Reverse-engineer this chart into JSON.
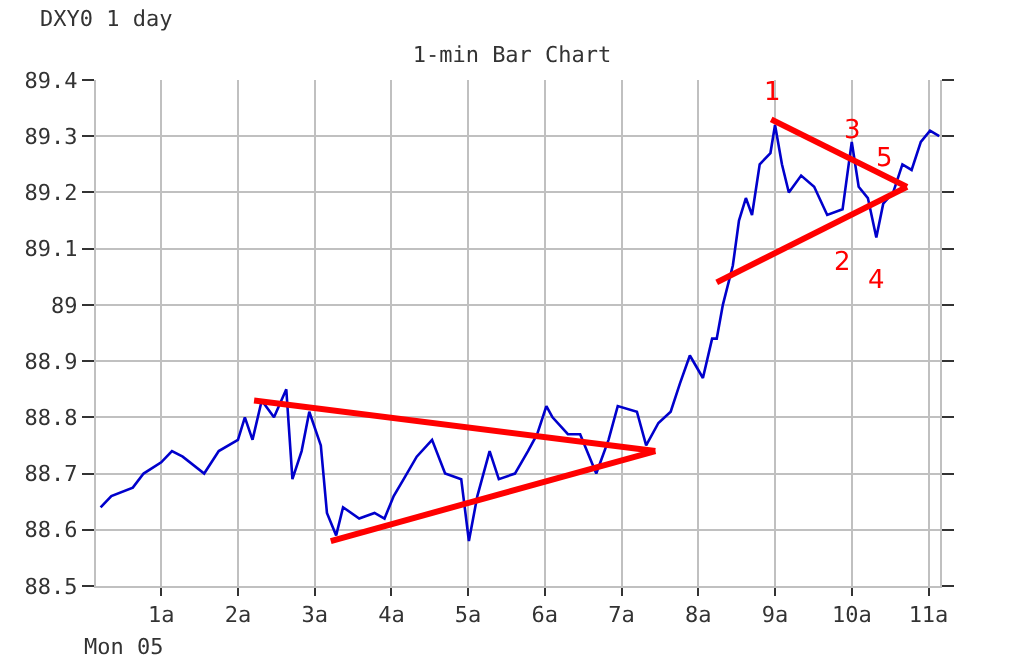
{
  "chart_data": {
    "type": "line",
    "title": "1-min Bar Chart",
    "subtitle": "DXY0 1 day",
    "x": [
      0.21,
      0.35,
      0.63,
      0.77,
      1.0,
      1.14,
      1.28,
      1.56,
      1.75,
      2.0,
      2.09,
      2.19,
      2.31,
      2.47,
      2.63,
      2.71,
      2.83,
      2.93,
      3.08,
      3.16,
      3.28,
      3.37,
      3.58,
      3.78,
      3.91,
      4.03,
      4.16,
      4.33,
      4.53,
      4.7,
      4.91,
      5.01,
      5.12,
      5.28,
      5.4,
      5.61,
      5.78,
      5.9,
      6.02,
      6.1,
      6.3,
      6.46,
      6.67,
      6.83,
      6.95,
      7.2,
      7.32,
      7.48,
      7.64,
      7.76,
      7.89,
      8.06,
      8.18,
      8.24,
      8.32,
      8.45,
      8.53,
      8.62,
      8.7,
      8.8,
      8.94,
      9.0,
      9.09,
      9.18,
      9.34,
      9.51,
      9.68,
      9.88,
      10.0,
      10.09,
      10.21,
      10.32,
      10.41,
      10.54,
      10.66,
      10.78,
      10.9,
      11.02,
      11.14
    ],
    "series": [
      {
        "color": "#0000cc",
        "values": [
          88.64,
          88.66,
          88.675,
          88.7,
          88.72,
          88.74,
          88.73,
          88.7,
          88.74,
          88.76,
          88.8,
          88.76,
          88.83,
          88.8,
          88.85,
          88.69,
          88.74,
          88.81,
          88.75,
          88.63,
          88.59,
          88.64,
          88.62,
          88.63,
          88.62,
          88.66,
          88.69,
          88.73,
          88.76,
          88.7,
          88.69,
          88.58,
          88.66,
          88.74,
          88.69,
          88.7,
          88.74,
          88.77,
          88.82,
          88.8,
          88.77,
          88.77,
          88.7,
          88.76,
          88.82,
          88.81,
          88.75,
          88.79,
          88.81,
          88.86,
          88.91,
          88.87,
          88.94,
          88.94,
          89.0,
          89.07,
          89.15,
          89.19,
          89.16,
          89.25,
          89.27,
          89.32,
          89.25,
          89.2,
          89.23,
          89.21,
          89.16,
          89.17,
          89.29,
          89.21,
          89.19,
          89.12,
          89.18,
          89.2,
          89.25,
          89.24,
          89.29,
          89.31,
          89.3
        ]
      },
      {
        "type": "line",
        "color": "#ff0000",
        "x": [
          2.21,
          7.44
        ],
        "values": [
          88.83,
          88.74
        ]
      },
      {
        "type": "line",
        "color": "#ff0000",
        "x": [
          3.21,
          7.44
        ],
        "values": [
          88.58,
          88.74
        ]
      },
      {
        "type": "line",
        "color": "#ff0000",
        "x": [
          8.24,
          10.72
        ],
        "values": [
          89.04,
          89.21
        ]
      },
      {
        "type": "line",
        "color": "#ff0000",
        "x": [
          8.95,
          10.72
        ],
        "values": [
          89.33,
          89.21
        ]
      }
    ],
    "xlim": [
      0.15,
      11.15
    ],
    "xticks": [
      {
        "value": 1,
        "label": "1a"
      },
      {
        "value": 2,
        "label": "2a"
      },
      {
        "value": 3,
        "label": "3a"
      },
      {
        "value": 4,
        "label": "4a"
      },
      {
        "value": 5,
        "label": "5a"
      },
      {
        "value": 6,
        "label": "6a"
      },
      {
        "value": 7,
        "label": "7a"
      },
      {
        "value": 8,
        "label": "8a"
      },
      {
        "value": 9,
        "label": "9a"
      },
      {
        "value": 10,
        "label": "10a"
      },
      {
        "value": 11,
        "label": "11a"
      }
    ],
    "ylim": [
      88.5,
      89.4
    ],
    "yticks": [
      88.5,
      88.6,
      88.7,
      88.8,
      88.9,
      89,
      89.1,
      89.2,
      89.3,
      89.4
    ],
    "grid": true,
    "marker": "none",
    "line_style": "solid",
    "annotations": [
      {
        "text": "1",
        "x": 8.95,
        "y": 89.33
      },
      {
        "text": "2",
        "x": 9.86,
        "y": 89.15
      },
      {
        "text": "3",
        "x": 10.0,
        "y": 89.26
      },
      {
        "text": "4",
        "x": 10.32,
        "y": 89.12
      },
      {
        "text": "5",
        "x": 10.72,
        "y": 89.21
      },
      "Mon 05"
    ]
  }
}
